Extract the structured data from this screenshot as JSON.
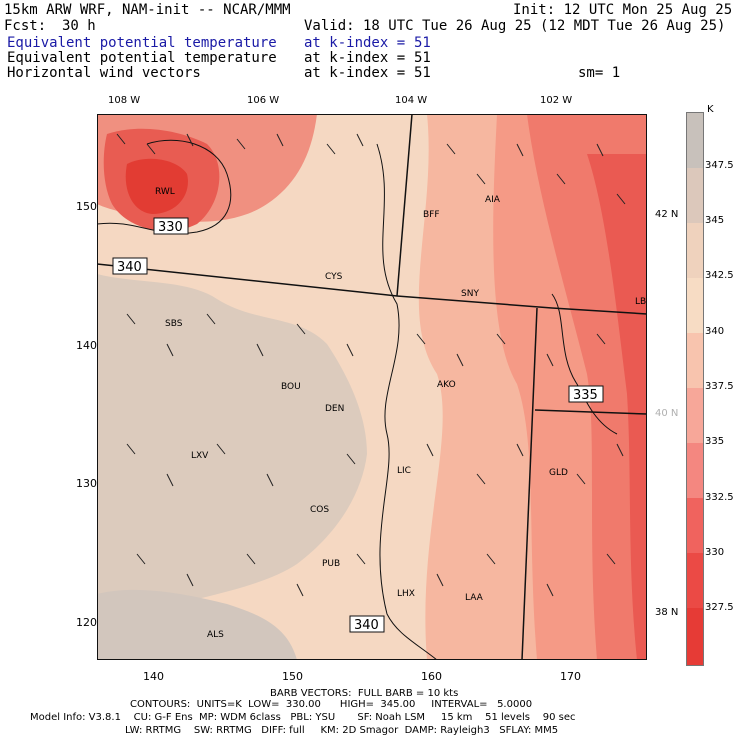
{
  "header": {
    "model": "15km ARW WRF, NAM-init -- NCAR/MMM",
    "init": "Init: 12 UTC Mon 25 Aug 25",
    "fcst_label": "Fcst:",
    "fcst_value": "30 h",
    "valid": "Valid: 18 UTC Tue 26 Aug 25 (12 MDT Tue 26 Aug 25)",
    "field1": "Equivalent potential temperature",
    "field1_level": "at k-index =",
    "field1_value": "51",
    "field2": "Equivalent potential temperature",
    "field2_level": "at k-index =",
    "field2_value": "51",
    "field3": "Horizontal wind vectors",
    "field3_level": "at k-index =",
    "field3_value": "51",
    "smoothing": "sm= 1"
  },
  "map": {
    "lon_labels": [
      "108 W",
      "106 W",
      "104 W",
      "102 W"
    ],
    "lat_labels": [
      "42 N",
      "40 N",
      "38 N"
    ],
    "grid_x_labels": [
      "140",
      "150",
      "160",
      "170"
    ],
    "grid_y_labels": [
      "150",
      "140",
      "130",
      "120"
    ],
    "contour_labels": [
      "330",
      "340",
      "335",
      "340"
    ],
    "stations": [
      "RWL",
      "BFF",
      "AIA",
      "CYS",
      "SNY",
      "LBF",
      "SBS",
      "BOU",
      "DEN",
      "AKO",
      "LXV",
      "LIC",
      "GLD",
      "COS",
      "PUB",
      "LHX",
      "LAA",
      "ALS"
    ]
  },
  "colorbar": {
    "unit": "K",
    "levels": [
      "347.5",
      "345",
      "342.5",
      "340",
      "337.5",
      "335",
      "332.5",
      "330",
      "327.5"
    ],
    "colors": [
      "#c8c1bb",
      "#dcc8bb",
      "#efd2bd",
      "#f7dcc4",
      "#f8c4ae",
      "#f7a799",
      "#f48780",
      "#f0635e",
      "#eb4a45",
      "#e63b36"
    ]
  },
  "footer": {
    "line1": "BARB VECTORS:  FULL BARB = 10 kts",
    "line2": "CONTOURS:  UNITS=K  LOW=  330.00      HIGH=  345.00     INTERVAL=   5.0000",
    "line3": "Model Info: V3.8.1    CU: G-F Ens  MP: WDM 6class   PBL: YSU       SF: Noah LSM     15 km    51 levels    90 sec",
    "line4": "LW: RRTMG    SW: RRTMG   DIFF: full     KM: 2D Smagor  DAMP: Rayleigh3   SFLAY: MM5"
  }
}
